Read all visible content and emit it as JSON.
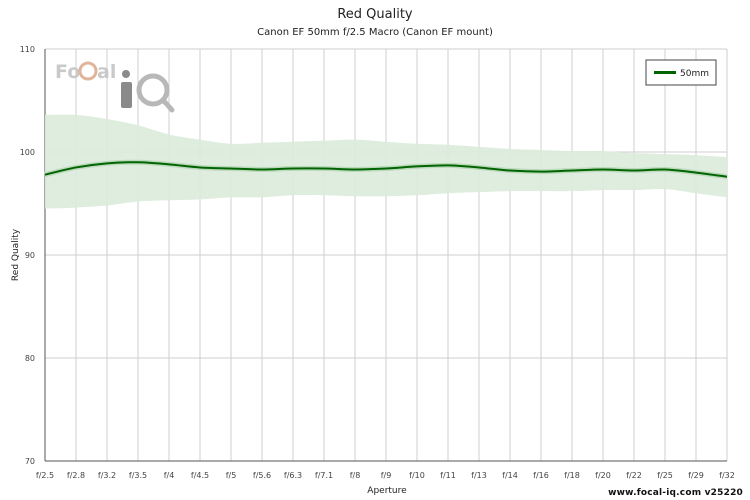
{
  "chart_data": {
    "type": "line",
    "title": "Red Quality",
    "subtitle": "Canon EF 50mm f/2.5 Macro (Canon EF mount)",
    "xlabel": "Aperture",
    "ylabel": "Red Quality",
    "ylim": [
      70,
      110
    ],
    "yticks": [
      70,
      80,
      90,
      100,
      110
    ],
    "categories": [
      "f/2.5",
      "f/2.8",
      "f/3.2",
      "f/3.5",
      "f/4",
      "f/4.5",
      "f/5",
      "f/5.6",
      "f/6.3",
      "f/7.1",
      "f/8",
      "f/9",
      "f/10",
      "f/11",
      "f/13",
      "f/14",
      "f/16",
      "f/18",
      "f/20",
      "f/22",
      "f/25",
      "f/29",
      "f/32"
    ],
    "grid": true,
    "legend_position": "top-right",
    "series": [
      {
        "name": "50mm",
        "color": "#006400",
        "values": [
          97.8,
          98.5,
          98.9,
          99.0,
          98.8,
          98.5,
          98.4,
          98.3,
          98.4,
          98.4,
          98.3,
          98.4,
          98.6,
          98.7,
          98.5,
          98.2,
          98.1,
          98.2,
          98.3,
          98.2,
          98.3,
          98.0,
          97.6
        ],
        "band_upper": [
          103.6,
          103.6,
          103.2,
          102.6,
          101.7,
          101.2,
          100.8,
          100.9,
          101.0,
          101.1,
          101.2,
          101.0,
          100.8,
          100.7,
          100.5,
          100.3,
          100.2,
          100.1,
          100.1,
          99.9,
          99.8,
          99.7,
          99.5
        ],
        "band_lower": [
          94.5,
          94.6,
          94.8,
          95.2,
          95.3,
          95.4,
          95.6,
          95.6,
          95.8,
          95.8,
          95.7,
          95.7,
          95.8,
          96.0,
          96.1,
          96.2,
          96.2,
          96.2,
          96.3,
          96.3,
          96.4,
          96.0,
          95.6
        ]
      }
    ],
    "band_color": "#dcebdc"
  },
  "watermark": "www.focal-iq.com  v25220",
  "logo_text": "FoCal iQ"
}
